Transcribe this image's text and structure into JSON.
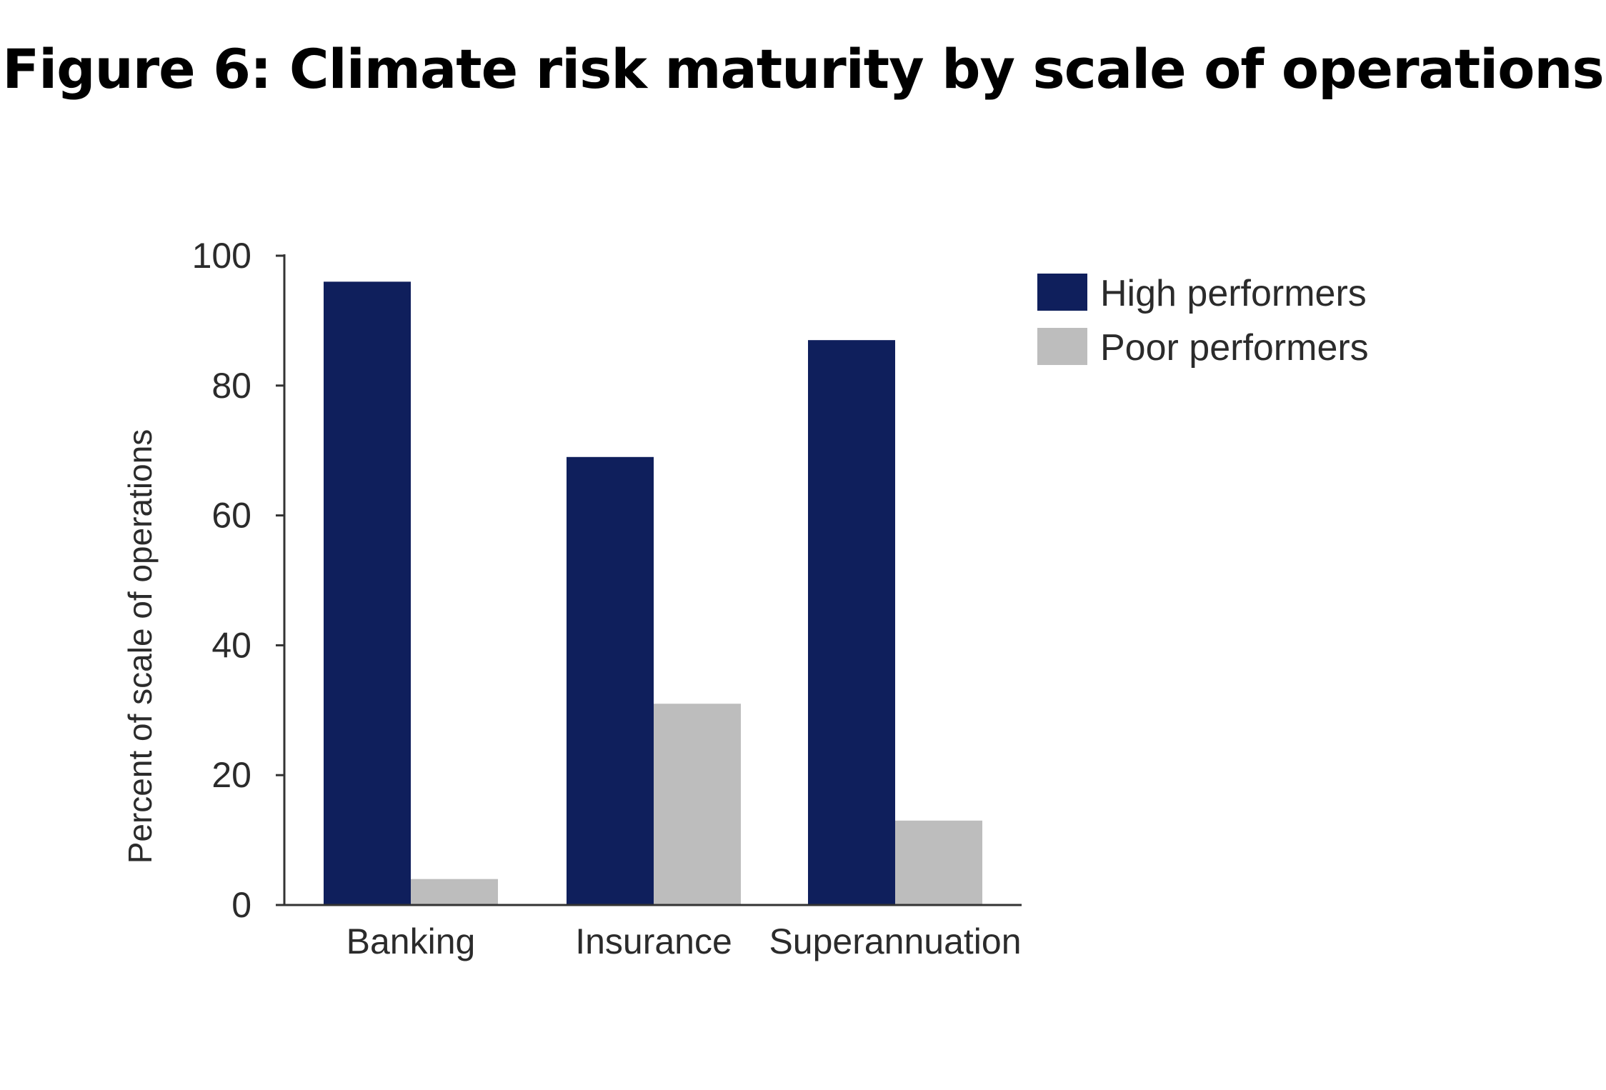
{
  "page": {
    "title": "Figure 6: Climate risk maturity by scale of operations"
  },
  "chart_data": {
    "type": "bar",
    "title": "Figure 6: Climate risk maturity by scale of operations",
    "xlabel": "",
    "ylabel": "Percent of scale of operations",
    "categories": [
      "Banking",
      "Insurance",
      "Superannuation"
    ],
    "series": [
      {
        "name": "High performers",
        "color": "#0f1f5c",
        "values": [
          96,
          69,
          87
        ]
      },
      {
        "name": "Poor performers",
        "color": "#bdbdbd",
        "values": [
          4,
          31,
          13
        ]
      }
    ],
    "ylim": [
      0,
      100
    ],
    "yticks": [
      "0",
      "20",
      "40",
      "60",
      "80",
      "100"
    ],
    "grid": false,
    "legend_position": "top-right"
  }
}
